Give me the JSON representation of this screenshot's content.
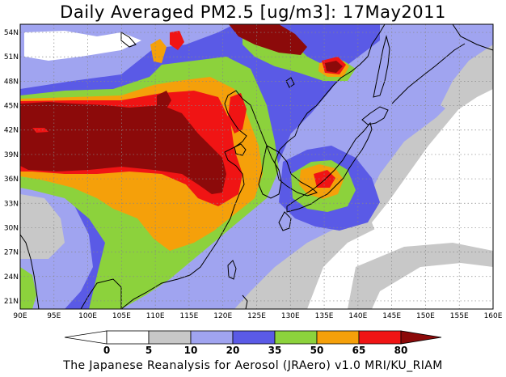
{
  "title": "Daily Averaged PM2.5 [ug/m3]: 17May2011",
  "footer": "The Japanese Reanalysis for Aerosol (JRAero) v1.0 MRI/KU_RIAM",
  "map": {
    "lon_range": [
      90,
      160
    ],
    "lat_range": [
      20,
      55
    ],
    "lon_labels": [
      "90E",
      "95E",
      "100E",
      "105E",
      "110E",
      "115E",
      "120E",
      "125E",
      "130E",
      "135E",
      "140E",
      "145E",
      "150E",
      "155E",
      "160E"
    ],
    "lat_labels": [
      "21N",
      "24N",
      "27N",
      "30N",
      "33N",
      "36N",
      "39N",
      "42N",
      "45N",
      "48N",
      "51N",
      "54N"
    ],
    "grid": true
  },
  "colorbar": {
    "levels": [
      "0",
      "5",
      "10",
      "20",
      "35",
      "50",
      "65",
      "80"
    ],
    "colors": {
      "lt0": "#ffffff",
      "c0_5": "#ffffff",
      "c5_10": "#c8c8c8",
      "c10_20": "#a0a4f0",
      "c20_35": "#5a5ae6",
      "c35_50": "#8cd23c",
      "c50_65": "#f5a00a",
      "c65_80": "#f01414",
      "gt80": "#8c0a0a"
    }
  }
}
